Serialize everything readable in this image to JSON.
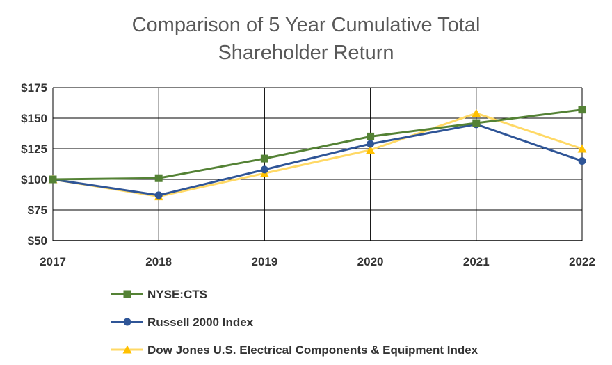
{
  "chart_data": {
    "type": "line",
    "title": "Comparison of 5 Year Cumulative Total Shareholder Return",
    "title_lines": [
      "Comparison of 5 Year Cumulative Total",
      "Shareholder Return"
    ],
    "x": [
      "2017",
      "2018",
      "2019",
      "2020",
      "2021",
      "2022"
    ],
    "y_ticks": [
      "$50",
      "$75",
      "$100",
      "$125",
      "$150",
      "$175"
    ],
    "ylim": [
      50,
      175
    ],
    "grid": true,
    "legend_position": "bottom",
    "series": [
      {
        "name": "NYSE:CTS",
        "color": "#548235",
        "marker": "square",
        "values": [
          100,
          101,
          117,
          135,
          146,
          157
        ]
      },
      {
        "name": "Russell 2000 Index",
        "color": "#2F5597",
        "marker": "circle",
        "values": [
          100,
          87,
          108,
          129,
          145,
          115
        ]
      },
      {
        "name": "Dow Jones U.S. Electrical Components & Equipment Index",
        "color": "#FFD966",
        "marker": "triangle",
        "values": [
          100,
          86,
          105,
          124,
          154,
          125
        ]
      }
    ]
  }
}
